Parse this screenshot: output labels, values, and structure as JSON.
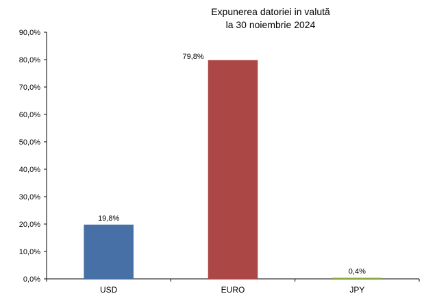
{
  "chart_data": {
    "type": "bar",
    "title_lines": [
      "Expunerea datoriei in valută",
      "la 30 noiembrie  2024"
    ],
    "categories": [
      "USD",
      "EURO",
      "JPY"
    ],
    "values": [
      19.8,
      79.8,
      0.4
    ],
    "data_labels": [
      "19,8%",
      "79,8%",
      "0,4%"
    ],
    "bar_colors": [
      "#4670a6",
      "#ab4744",
      "#8aa83f"
    ],
    "ylim": [
      0,
      90
    ],
    "yticks": [
      0,
      10,
      20,
      30,
      40,
      50,
      60,
      70,
      80,
      90
    ],
    "ytick_labels": [
      "0,0%",
      "10,0%",
      "20,0%",
      "30,0%",
      "40,0%",
      "50,0%",
      "60,0%",
      "70,0%",
      "80,0%",
      "90,0%"
    ],
    "grid": false,
    "legend": "none"
  }
}
